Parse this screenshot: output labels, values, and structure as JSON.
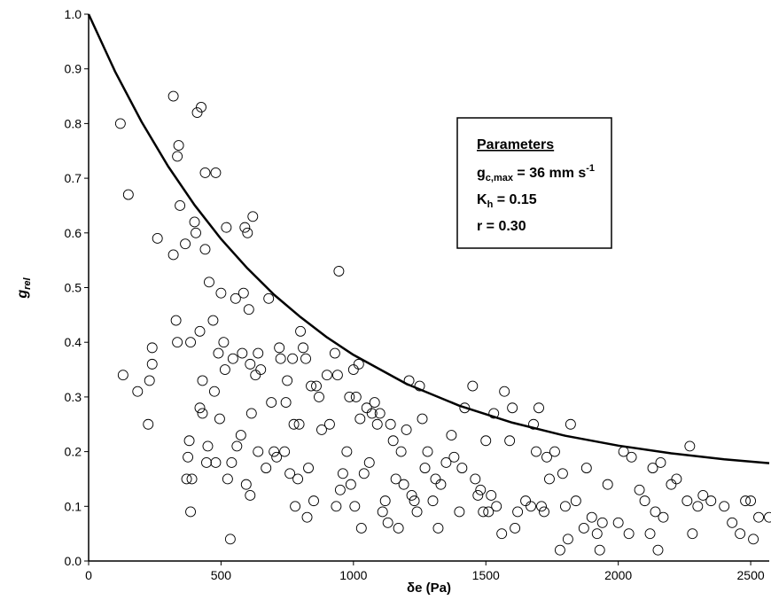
{
  "chart_data": {
    "type": "scatter",
    "xlabel": "δe (Pa)",
    "ylabel": {
      "base": "g",
      "sub": "rel"
    },
    "xlim": [
      0,
      2570
    ],
    "ylim": [
      0,
      1
    ],
    "xticks": [
      0,
      500,
      1000,
      1500,
      2000,
      2500
    ],
    "yticks": [
      {
        "value": 0,
        "label": "0.0"
      },
      0.1,
      0.2,
      0.3,
      0.4,
      0.5,
      0.6,
      0.7,
      0.8,
      0.9,
      {
        "value": 1,
        "label": "1.0"
      }
    ],
    "annotation": {
      "title": "Parameters",
      "lines": [
        {
          "base": "g",
          "sub": "c,max",
          "rest": " = 36 mm s",
          "sup": "-1"
        },
        {
          "base": "K",
          "sub": "h",
          "rest": " = 0.15"
        },
        {
          "base": "r = 0.30"
        }
      ]
    },
    "series": [
      {
        "style": "markers",
        "color": "#000000",
        "x": [
          120,
          130,
          150,
          185,
          225,
          230,
          240,
          240,
          260,
          320,
          320,
          330,
          335,
          340,
          345,
          335,
          365,
          370,
          375,
          380,
          385,
          390,
          385,
          400,
          405,
          410,
          420,
          425,
          420,
          430,
          430,
          440,
          440,
          450,
          445,
          455,
          470,
          475,
          480,
          480,
          490,
          495,
          500,
          510,
          515,
          520,
          525,
          535,
          540,
          545,
          555,
          560,
          575,
          580,
          585,
          590,
          595,
          600,
          605,
          610,
          615,
          610,
          620,
          630,
          640,
          640,
          650,
          670,
          680,
          690,
          700,
          710,
          720,
          725,
          740,
          745,
          750,
          760,
          770,
          775,
          780,
          790,
          795,
          800,
          810,
          820,
          825,
          830,
          840,
          850,
          860,
          870,
          880,
          900,
          910,
          930,
          935,
          940,
          945,
          950,
          960,
          975,
          985,
          990,
          1000,
          1005,
          1010,
          1020,
          1025,
          1030,
          1040,
          1050,
          1060,
          1070,
          1080,
          1090,
          1100,
          1110,
          1120,
          1130,
          1140,
          1150,
          1160,
          1170,
          1180,
          1190,
          1200,
          1210,
          1220,
          1230,
          1240,
          1250,
          1260,
          1270,
          1280,
          1300,
          1310,
          1320,
          1330,
          1350,
          1370,
          1380,
          1400,
          1410,
          1420,
          1450,
          1460,
          1470,
          1480,
          1490,
          1500,
          1510,
          1520,
          1530,
          1540,
          1560,
          1570,
          1590,
          1600,
          1610,
          1620,
          1650,
          1670,
          1680,
          1690,
          1700,
          1710,
          1720,
          1730,
          1740,
          1760,
          1780,
          1790,
          1800,
          1810,
          1820,
          1840,
          1870,
          1880,
          1900,
          1920,
          1930,
          1940,
          1960,
          2000,
          2020,
          2040,
          2050,
          2080,
          2100,
          2120,
          2130,
          2140,
          2150,
          2160,
          2170,
          2200,
          2220,
          2260,
          2270,
          2280,
          2300,
          2320,
          2350,
          2400,
          2430,
          2460,
          2480,
          2500,
          2510,
          2530,
          2570
        ],
        "values": [
          0.8,
          0.34,
          0.67,
          0.31,
          0.25,
          0.33,
          0.36,
          0.39,
          0.59,
          0.85,
          0.56,
          0.44,
          0.74,
          0.76,
          0.65,
          0.4,
          0.58,
          0.15,
          0.19,
          0.22,
          0.09,
          0.15,
          0.4,
          0.62,
          0.6,
          0.82,
          0.42,
          0.83,
          0.28,
          0.33,
          0.27,
          0.71,
          0.57,
          0.21,
          0.18,
          0.51,
          0.44,
          0.31,
          0.18,
          0.71,
          0.38,
          0.26,
          0.49,
          0.4,
          0.35,
          0.61,
          0.15,
          0.04,
          0.18,
          0.37,
          0.48,
          0.21,
          0.23,
          0.38,
          0.49,
          0.61,
          0.14,
          0.6,
          0.46,
          0.36,
          0.27,
          0.12,
          0.63,
          0.34,
          0.38,
          0.2,
          0.35,
          0.17,
          0.48,
          0.29,
          0.2,
          0.19,
          0.39,
          0.37,
          0.2,
          0.29,
          0.33,
          0.16,
          0.37,
          0.25,
          0.1,
          0.15,
          0.25,
          0.42,
          0.39,
          0.37,
          0.08,
          0.17,
          0.32,
          0.11,
          0.32,
          0.3,
          0.24,
          0.34,
          0.25,
          0.38,
          0.1,
          0.34,
          0.53,
          0.13,
          0.16,
          0.2,
          0.3,
          0.14,
          0.35,
          0.1,
          0.3,
          0.36,
          0.26,
          0.06,
          0.16,
          0.28,
          0.18,
          0.27,
          0.29,
          0.25,
          0.27,
          0.09,
          0.11,
          0.07,
          0.25,
          0.22,
          0.15,
          0.06,
          0.2,
          0.14,
          0.24,
          0.33,
          0.12,
          0.11,
          0.09,
          0.32,
          0.26,
          0.17,
          0.2,
          0.11,
          0.15,
          0.06,
          0.14,
          0.18,
          0.23,
          0.19,
          0.09,
          0.17,
          0.28,
          0.32,
          0.15,
          0.12,
          0.13,
          0.09,
          0.22,
          0.09,
          0.12,
          0.27,
          0.1,
          0.05,
          0.31,
          0.22,
          0.28,
          0.06,
          0.09,
          0.11,
          0.1,
          0.25,
          0.2,
          0.28,
          0.1,
          0.09,
          0.19,
          0.15,
          0.2,
          0.02,
          0.16,
          0.1,
          0.04,
          0.25,
          0.11,
          0.06,
          0.17,
          0.08,
          0.05,
          0.02,
          0.07,
          0.14,
          0.07,
          0.2,
          0.05,
          0.19,
          0.13,
          0.11,
          0.05,
          0.17,
          0.09,
          0.02,
          0.18,
          0.08,
          0.14,
          0.15,
          0.11,
          0.21,
          0.05,
          0.1,
          0.12,
          0.11,
          0.1,
          0.07,
          0.05,
          0.11,
          0.11,
          0.04,
          0.08,
          0.08
        ]
      },
      {
        "style": "line",
        "color": "#000000",
        "x": [
          0,
          100,
          200,
          300,
          400,
          500,
          600,
          700,
          800,
          900,
          1000,
          1200,
          1400,
          1600,
          1800,
          2000,
          2200,
          2400,
          2570
        ],
        "values": [
          1.0,
          0.895,
          0.803,
          0.722,
          0.651,
          0.589,
          0.535,
          0.487,
          0.446,
          0.409,
          0.377,
          0.324,
          0.284,
          0.253,
          0.229,
          0.211,
          0.197,
          0.186,
          0.179
        ]
      }
    ]
  }
}
